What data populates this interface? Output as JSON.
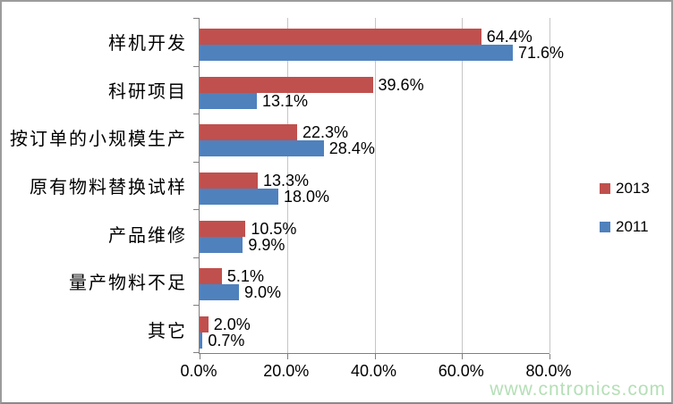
{
  "chart_data": {
    "type": "bar",
    "orientation": "horizontal",
    "categories": [
      "样机开发",
      "科研项目",
      "按订单的小规模生产",
      "原有物料替换试样",
      "产品维修",
      "量产物料不足",
      "其它"
    ],
    "series": [
      {
        "name": "2013",
        "color": "#C0504D",
        "values": [
          64.4,
          39.6,
          22.3,
          13.3,
          10.5,
          5.1,
          2.0
        ],
        "labels": [
          "64.4%",
          "39.6%",
          "22.3%",
          "13.3%",
          "10.5%",
          "5.1%",
          "2.0%"
        ]
      },
      {
        "name": "2011",
        "color": "#4F81BD",
        "values": [
          71.6,
          13.1,
          28.4,
          18.0,
          9.9,
          9.0,
          0.7
        ],
        "labels": [
          "71.6%",
          "13.1%",
          "28.4%",
          "18.0%",
          "9.9%",
          "9.0%",
          "0.7%"
        ]
      }
    ],
    "xlim": [
      0,
      80
    ],
    "x_ticks": [
      {
        "value": 0,
        "label": "0.0%"
      },
      {
        "value": 20,
        "label": "20.0%"
      },
      {
        "value": 40,
        "label": "40.0%"
      },
      {
        "value": 60,
        "label": "60.0%"
      },
      {
        "value": 80,
        "label": "80.0%"
      }
    ],
    "grid": true,
    "legend_position": "right"
  },
  "legend": {
    "items": [
      {
        "label": "2013",
        "color": "#C0504D"
      },
      {
        "label": "2011",
        "color": "#4F81BD"
      }
    ]
  },
  "watermark": {
    "text": "www.cntronics.com",
    "color": "#B4DFB6"
  },
  "styles": {
    "bar_red": "#C0504D",
    "bar_blue": "#4F81BD",
    "gridline": "#C6C6C6",
    "axis": "#7F7F7F",
    "text": "#000000",
    "frame_border": "#9C9C9C",
    "background": "#FFFFFF"
  }
}
